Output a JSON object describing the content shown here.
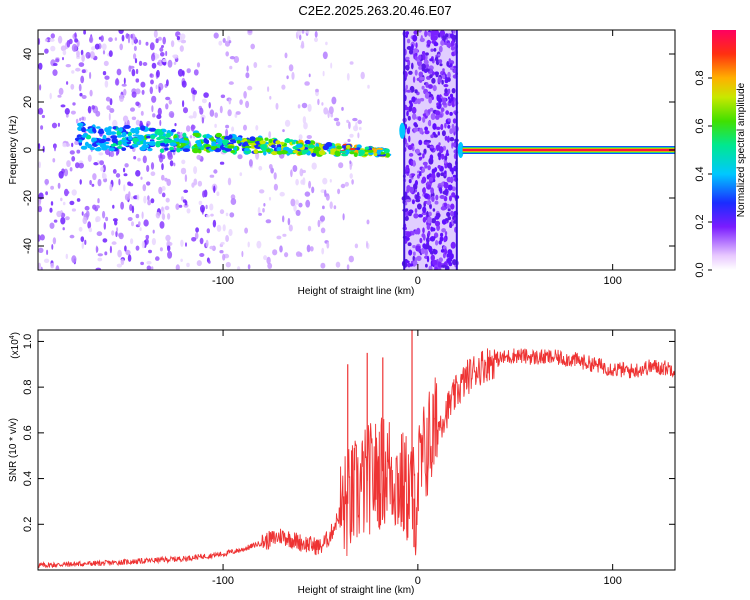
{
  "chart_data": [
    {
      "type": "heatmap",
      "title": "C2E2.2025.263.20.46.E07",
      "xlabel": "Height of straight line (km)",
      "ylabel": "Frequency (Hz)",
      "xlim": [
        -195,
        132
      ],
      "ylim": [
        -50,
        50
      ],
      "xticks": [
        -100,
        0,
        100
      ],
      "yticks": [
        -40,
        -20,
        0,
        20,
        40
      ],
      "colorbar": {
        "label": "Normalized spectral amplitude",
        "range": [
          0,
          1
        ],
        "ticks": [
          "0.0",
          "0.2",
          "0.4",
          "0.6",
          "0.8"
        ]
      },
      "features": [
        {
          "name": "scattered-noise",
          "x_range": [
            -195,
            -25
          ],
          "freq_range": [
            -50,
            50
          ]
        },
        {
          "name": "main-trace",
          "x_range": [
            -175,
            -15
          ],
          "freq_start": 6,
          "freq_end": -1
        },
        {
          "name": "wideband-burst",
          "x_range": [
            -7,
            20
          ],
          "freq_range": [
            -50,
            50
          ]
        },
        {
          "name": "steady-tone",
          "x_range": [
            23,
            132
          ],
          "freq": 0
        }
      ]
    },
    {
      "type": "line",
      "xlabel": "Height of straight line (km)",
      "ylabel": "SNR (10 * v/v)",
      "yscale_label": "(x10",
      "yscale_exp": "4",
      "xlim": [
        -195,
        132
      ],
      "ylim": [
        0,
        1.05
      ],
      "xticks": [
        -100,
        0,
        100
      ],
      "yticks": [
        0.2,
        0.4,
        0.6,
        0.8,
        1.0
      ],
      "ytick_labels": [
        "0.2",
        "0.4",
        "0.6",
        "0.8",
        "1.0"
      ],
      "series": [
        {
          "name": "SNR",
          "color": "#ee3333",
          "x": [
            -195,
            -180,
            -160,
            -140,
            -120,
            -100,
            -90,
            -80,
            -70,
            -60,
            -50,
            -45,
            -40,
            -35,
            -30,
            -25,
            -20,
            -15,
            -10,
            -5,
            -1,
            0,
            5,
            10,
            15,
            20,
            25,
            30,
            40,
            50,
            60,
            70,
            80,
            90,
            100,
            110,
            120,
            132
          ],
          "values": [
            0.02,
            0.025,
            0.03,
            0.04,
            0.05,
            0.07,
            0.09,
            0.12,
            0.15,
            0.12,
            0.1,
            0.15,
            0.25,
            0.3,
            0.35,
            0.4,
            0.42,
            0.45,
            0.38,
            0.35,
            0.3,
            0.4,
            0.55,
            0.62,
            0.7,
            0.78,
            0.84,
            0.88,
            0.92,
            0.94,
            0.93,
            0.93,
            0.92,
            0.9,
            0.88,
            0.87,
            0.89,
            0.88
          ]
        }
      ],
      "spikes": [
        {
          "x": -36,
          "y": 0.9
        },
        {
          "x": -26,
          "y": 0.95
        },
        {
          "x": -18,
          "y": 0.93
        },
        {
          "x": -3,
          "y": 1.05
        },
        {
          "x": -2,
          "y": 0.1
        }
      ]
    }
  ]
}
